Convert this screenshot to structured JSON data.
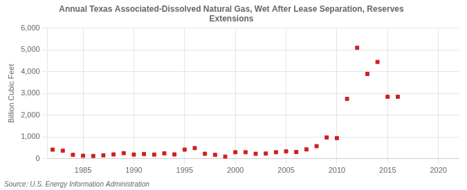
{
  "chart_data": {
    "type": "scatter",
    "title": "Annual Texas Associated-Dissolved Natural Gas, Wet After Lease Separation, Reserves\nExtensions",
    "ylabel": "Billion Cubic Feet",
    "annotations": [
      "Source: U.S. Energy Information Administration"
    ],
    "x": [
      1982,
      1983,
      1984,
      1985,
      1986,
      1987,
      1988,
      1989,
      1990,
      1991,
      1992,
      1993,
      1994,
      1995,
      1996,
      1997,
      1998,
      1999,
      2000,
      2001,
      2002,
      2003,
      2004,
      2005,
      2006,
      2007,
      2008,
      2009,
      2010,
      2011,
      2012,
      2013,
      2014,
      2015,
      2016
    ],
    "values": [
      420,
      370,
      180,
      140,
      130,
      160,
      200,
      260,
      195,
      220,
      195,
      250,
      200,
      420,
      490,
      230,
      180,
      100,
      300,
      300,
      230,
      240,
      300,
      340,
      310,
      430,
      580,
      980,
      950,
      2750,
      5100,
      3900,
      4450,
      2850,
      2850
    ],
    "color": "#cc2222",
    "marker": "square",
    "xlim": [
      1981.5,
      2022
    ],
    "ylim": [
      0,
      6000
    ],
    "xticks": [
      1985,
      1990,
      1995,
      2000,
      2005,
      2010,
      2015,
      2020
    ],
    "yticks": [
      0,
      {
        "value": 1000,
        "label": "1,000"
      },
      {
        "value": 2000,
        "label": "2,000"
      },
      {
        "value": 3000,
        "label": "3,000"
      },
      {
        "value": 4000,
        "label": "4,000"
      },
      {
        "value": 5000,
        "label": "5,000"
      },
      {
        "value": 6000,
        "label": "6,000"
      }
    ],
    "grid": true
  }
}
